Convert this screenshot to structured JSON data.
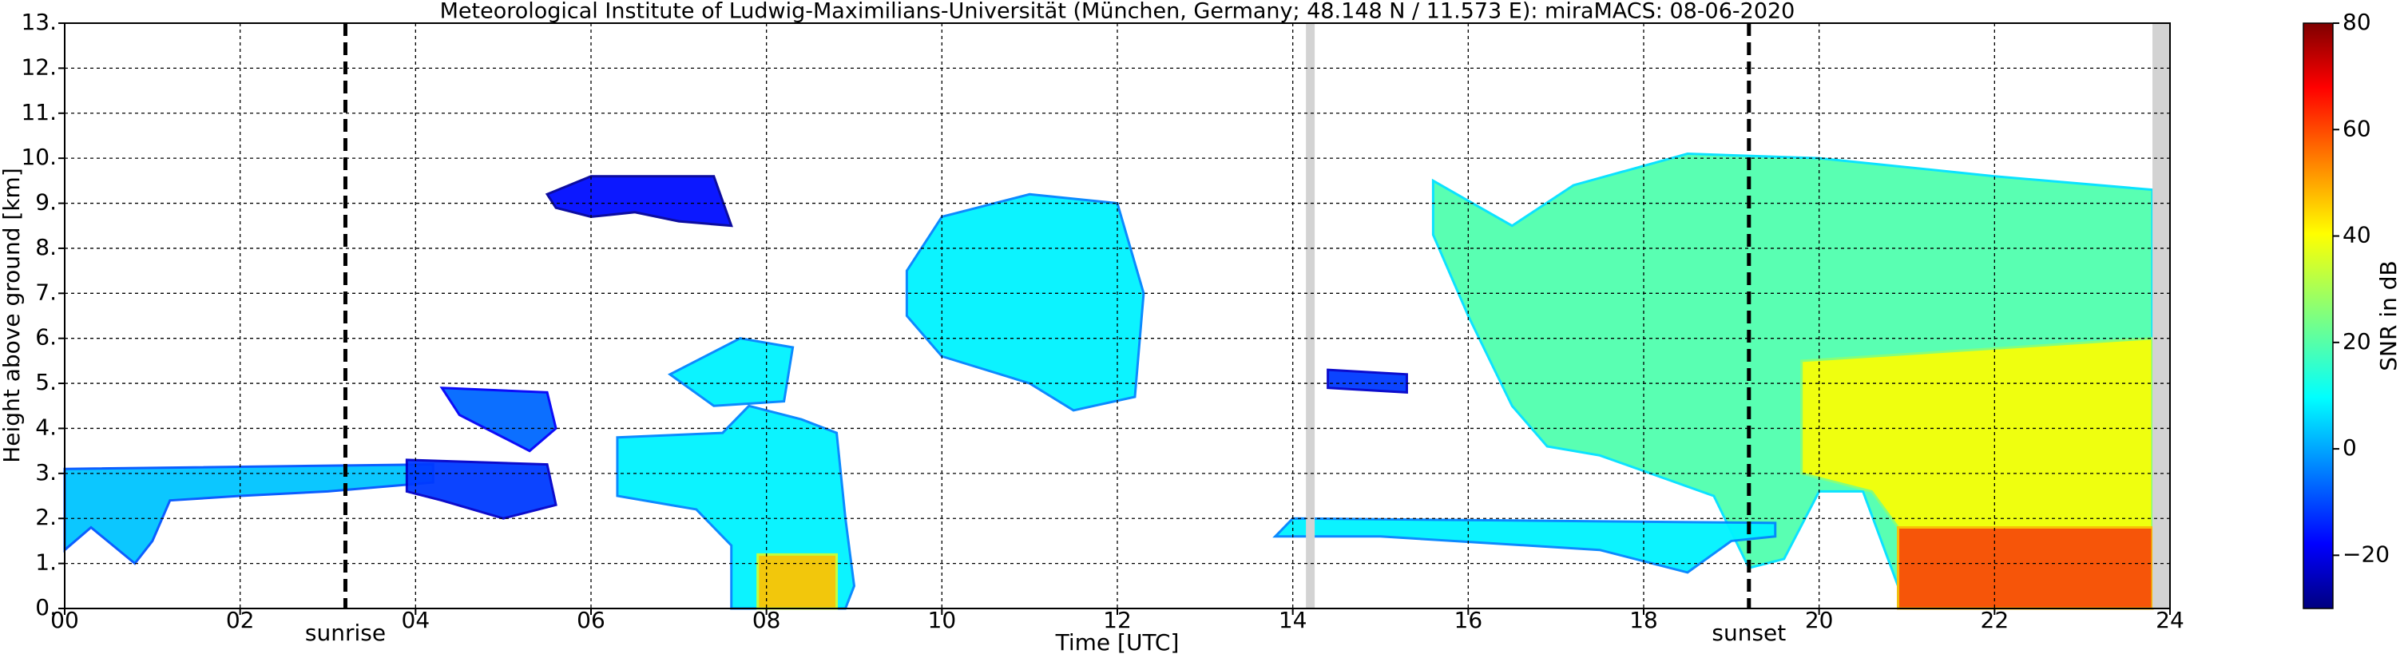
{
  "chart_data": {
    "type": "heatmap",
    "title": "Meteorological Institute of Ludwig-Maximilians-Universität (München, Germany; 48.148 N / 11.573 E):    miraMACS: 08-06-2020",
    "x_label": "Time [UTC]",
    "y_label": "Height above ground [km]",
    "xlim": [
      0,
      24
    ],
    "ylim": [
      0,
      13
    ],
    "xticks": [
      {
        "value": 0,
        "label": "00"
      },
      {
        "value": 2,
        "label": "02"
      },
      {
        "value": 4,
        "label": "04"
      },
      {
        "value": 6,
        "label": "06"
      },
      {
        "value": 8,
        "label": "08"
      },
      {
        "value": 10,
        "label": "10"
      },
      {
        "value": 12,
        "label": "12"
      },
      {
        "value": 14,
        "label": "14"
      },
      {
        "value": 16,
        "label": "16"
      },
      {
        "value": 18,
        "label": "18"
      },
      {
        "value": 20,
        "label": "20"
      },
      {
        "value": 22,
        "label": "22"
      },
      {
        "value": 24,
        "label": "24"
      }
    ],
    "yticks": [
      {
        "value": 0,
        "label": "0."
      },
      {
        "value": 1,
        "label": "1."
      },
      {
        "value": 2,
        "label": "2."
      },
      {
        "value": 3,
        "label": "3."
      },
      {
        "value": 4,
        "label": "4."
      },
      {
        "value": 5,
        "label": "5."
      },
      {
        "value": 6,
        "label": "6."
      },
      {
        "value": 7,
        "label": "7."
      },
      {
        "value": 8,
        "label": "8."
      },
      {
        "value": 9,
        "label": "9."
      },
      {
        "value": 10,
        "label": "10."
      },
      {
        "value": 11,
        "label": "11."
      },
      {
        "value": 12,
        "label": "12."
      },
      {
        "value": 13,
        "label": "13."
      }
    ],
    "grid": true,
    "colormap": "jet",
    "colorbar": {
      "label": "SNR in dB",
      "lim": [
        -30,
        80
      ],
      "ticks": [
        {
          "value": -20,
          "label": "−20"
        },
        0,
        20,
        40,
        60,
        80
      ]
    },
    "no_data": [
      [
        14.15,
        14.25
      ],
      [
        23.8,
        24
      ]
    ],
    "no_data_color": "#d3d3d3",
    "markers": [
      {
        "x": 3.2,
        "label": "sunrise"
      },
      {
        "x": 19.2,
        "label": "sunset"
      }
    ],
    "regions": [
      {
        "points": [
          [
            0,
            3.1
          ],
          [
            4.2,
            3.2
          ],
          [
            4.2,
            2.8
          ],
          [
            3,
            2.6
          ],
          [
            2,
            2.5
          ],
          [
            1.2,
            2.4
          ],
          [
            1,
            1.5
          ],
          [
            0.8,
            1
          ],
          [
            0.3,
            1.8
          ],
          [
            0,
            1.3
          ]
        ],
        "snr": 5
      },
      {
        "points": [
          [
            5.5,
            9.2
          ],
          [
            6,
            9.6
          ],
          [
            7.4,
            9.6
          ],
          [
            7.6,
            8.5
          ],
          [
            7,
            8.6
          ],
          [
            6.5,
            8.8
          ],
          [
            6,
            8.7
          ],
          [
            5.6,
            8.9
          ]
        ],
        "snr": -15
      },
      {
        "points": [
          [
            4.3,
            4.9
          ],
          [
            5.5,
            4.8
          ],
          [
            5.6,
            4.0
          ],
          [
            5.3,
            3.5
          ],
          [
            5,
            3.8
          ],
          [
            4.5,
            4.3
          ]
        ],
        "snr": -5
      },
      {
        "points": [
          [
            3.9,
            3.3
          ],
          [
            5.5,
            3.2
          ],
          [
            5.6,
            2.3
          ],
          [
            5,
            2.0
          ],
          [
            4.3,
            2.4
          ],
          [
            3.9,
            2.6
          ]
        ],
        "snr": -10
      },
      {
        "points": [
          [
            6.3,
            3.8
          ],
          [
            7.5,
            3.9
          ],
          [
            7.8,
            4.5
          ],
          [
            8.4,
            4.2
          ],
          [
            8.8,
            3.9
          ],
          [
            8.9,
            2
          ],
          [
            9,
            0.5
          ],
          [
            8.9,
            0
          ],
          [
            7.6,
            0
          ],
          [
            7.6,
            1.4
          ],
          [
            7.2,
            2.2
          ],
          [
            6.3,
            2.5
          ]
        ],
        "snr": 10
      },
      {
        "points": [
          [
            7.9,
            1.2
          ],
          [
            8.8,
            1.2
          ],
          [
            8.8,
            0
          ],
          [
            7.9,
            0
          ]
        ],
        "snr": 45
      },
      {
        "points": [
          [
            6.9,
            5.2
          ],
          [
            7.7,
            6.0
          ],
          [
            8.3,
            5.8
          ],
          [
            8.2,
            4.6
          ],
          [
            7.4,
            4.5
          ]
        ],
        "snr": 10
      },
      {
        "points": [
          [
            9.6,
            7.5
          ],
          [
            10,
            8.7
          ],
          [
            11,
            9.2
          ],
          [
            12,
            9.0
          ],
          [
            12.3,
            7.0
          ],
          [
            12.2,
            4.7
          ],
          [
            11.5,
            4.4
          ],
          [
            11,
            5.0
          ],
          [
            10,
            5.6
          ],
          [
            9.6,
            6.5
          ]
        ],
        "snr": 10
      },
      {
        "points": [
          [
            15.6,
            9.5
          ],
          [
            16.5,
            8.5
          ],
          [
            17.2,
            9.4
          ],
          [
            18.5,
            10.1
          ],
          [
            20,
            10
          ],
          [
            22,
            9.6
          ],
          [
            23.8,
            9.3
          ],
          [
            23.8,
            0
          ],
          [
            20.9,
            0
          ],
          [
            20.9,
            0.5
          ],
          [
            20.5,
            2.6
          ],
          [
            20,
            2.6
          ],
          [
            19.6,
            1.1
          ],
          [
            19.2,
            0.9
          ],
          [
            18.8,
            2.5
          ],
          [
            17.5,
            3.4
          ],
          [
            16.9,
            3.6
          ],
          [
            16.5,
            4.5
          ],
          [
            16,
            6.5
          ],
          [
            15.6,
            8.3
          ]
        ],
        "snr": 20
      },
      {
        "points": [
          [
            19.8,
            5.5
          ],
          [
            23.8,
            6
          ],
          [
            23.8,
            1.8
          ],
          [
            20.9,
            1.8
          ],
          [
            20.6,
            2.6
          ],
          [
            19.8,
            3
          ]
        ],
        "snr": 38
      },
      {
        "points": [
          [
            20.9,
            1.8
          ],
          [
            23.8,
            1.8
          ],
          [
            23.8,
            0
          ],
          [
            20.9,
            0
          ]
        ],
        "snr": 58
      },
      {
        "points": [
          [
            13.8,
            1.6
          ],
          [
            14,
            2.0
          ],
          [
            19.5,
            1.9
          ],
          [
            19.5,
            1.6
          ],
          [
            19,
            1.5
          ],
          [
            18.5,
            0.8
          ],
          [
            17.5,
            1.3
          ],
          [
            15,
            1.6
          ]
        ],
        "snr": 10
      },
      {
        "points": [
          [
            14.4,
            5.3
          ],
          [
            15.3,
            5.2
          ],
          [
            15.3,
            4.8
          ],
          [
            14.4,
            4.9
          ]
        ],
        "snr": -10
      }
    ]
  }
}
